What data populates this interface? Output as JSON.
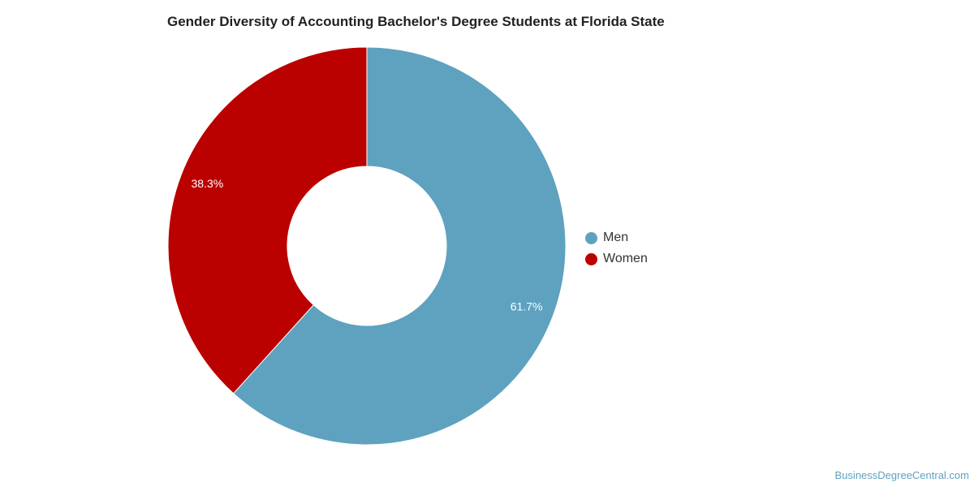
{
  "chart_data": {
    "type": "pie",
    "variant": "donut",
    "title": "Gender Diversity of Accounting Bachelor's Degree Students at Florida State",
    "slices": [
      {
        "label": "Men",
        "value": 61.7,
        "display": "61.7%",
        "color": "#5ea2c0"
      },
      {
        "label": "Women",
        "value": 38.3,
        "display": "38.3%",
        "color": "#bb0000"
      }
    ],
    "legend_position": "right"
  },
  "watermark": "BusinessDegreeCentral.com"
}
